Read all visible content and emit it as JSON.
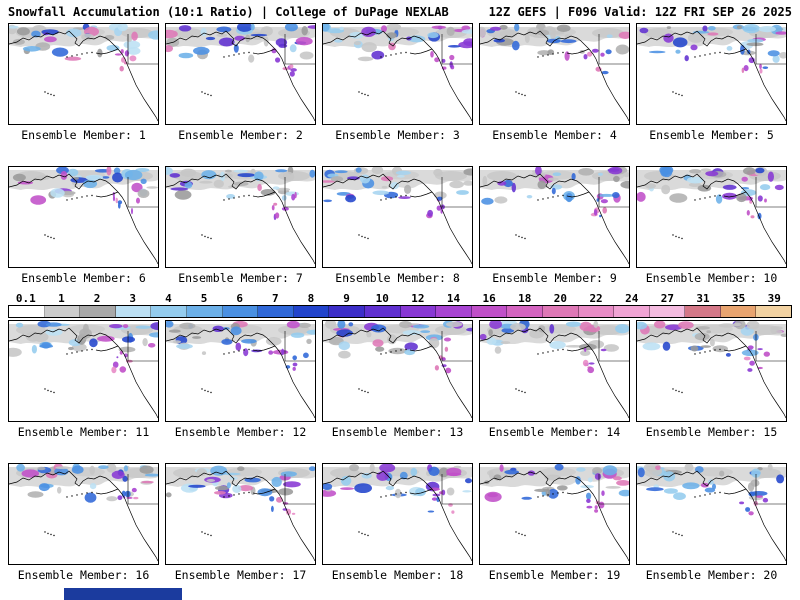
{
  "header": {
    "left": "Snowfall Accumulation (10:1 Ratio) | College of DuPage NEXLAB",
    "right": "12Z GEFS | F096 Valid: 12Z FRI SEP 26 2025"
  },
  "members": [
    "Ensemble Member: 1",
    "Ensemble Member: 2",
    "Ensemble Member: 3",
    "Ensemble Member: 4",
    "Ensemble Member: 5",
    "Ensemble Member: 6",
    "Ensemble Member: 7",
    "Ensemble Member: 8",
    "Ensemble Member: 9",
    "Ensemble Member: 10",
    "Ensemble Member: 11",
    "Ensemble Member: 12",
    "Ensemble Member: 13",
    "Ensemble Member: 14",
    "Ensemble Member: 15",
    "Ensemble Member: 16",
    "Ensemble Member: 17",
    "Ensemble Member: 18",
    "Ensemble Member: 19",
    "Ensemble Member: 20"
  ],
  "chart_data": {
    "type": "heatmap",
    "title": "Snowfall Accumulation (10:1 Ratio)",
    "source": "College of DuPage NEXLAB",
    "model_run": "12Z GEFS",
    "forecast_hour": "F096",
    "valid_time": "12Z FRI SEP 26 2025",
    "n_panels": 20,
    "panel_label_prefix": "Ensemble Member:",
    "scale": {
      "ticks": [
        "0.1",
        "1",
        "2",
        "3",
        "4",
        "5",
        "6",
        "7",
        "8",
        "9",
        "10",
        "12",
        "14",
        "16",
        "18",
        "20",
        "22",
        "24",
        "27",
        "31",
        "35",
        "39"
      ],
      "colors": [
        "#ffffff",
        "#cccccc",
        "#a8a8a8",
        "#bce0f4",
        "#94ccee",
        "#6cb0e8",
        "#4a90e2",
        "#3068d8",
        "#2244cc",
        "#3c2ec8",
        "#6030d0",
        "#8838d4",
        "#a844d2",
        "#c050c8",
        "#d464c0",
        "#de78b6",
        "#e88cc6",
        "#f0a4d4",
        "#f4bce0",
        "#d47888",
        "#e8a470",
        "#f2d2a2"
      ]
    }
  },
  "map_palette": [
    "#c6c6c6",
    "#b0b0b0",
    "#9a9a9a",
    "#bce0f4",
    "#a6d4f0",
    "#94ccee",
    "#6cb0e8",
    "#4a90e2",
    "#3068d8",
    "#2244cc",
    "#6030d0",
    "#8838d4",
    "#c050c8",
    "#de78b6"
  ],
  "coastal_palette": [
    "#8838d4",
    "#a844d2",
    "#c050c8",
    "#de78b6",
    "#e88cc6",
    "#3068d8"
  ],
  "footer_color": "#1b3b9e"
}
